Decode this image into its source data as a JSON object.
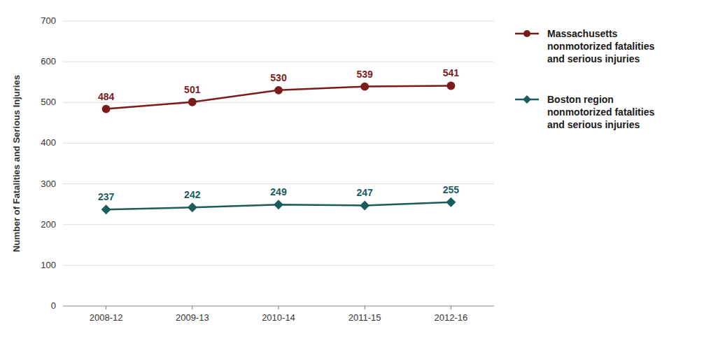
{
  "chart_data": {
    "type": "line",
    "categories": [
      "2008-12",
      "2009-13",
      "2010-14",
      "2011-15",
      "2012-16"
    ],
    "series": [
      {
        "name": "Massachusetts\nnonmotorized fatalities\nand serious injuries",
        "color": "#7B1C1C",
        "marker": "circle",
        "values": [
          484,
          501,
          530,
          539,
          541
        ]
      },
      {
        "name": "Boston region\nnonmotorized fatalities\nand serious injuries",
        "color": "#1B5C5C",
        "marker": "diamond",
        "values": [
          237,
          242,
          249,
          247,
          255
        ]
      }
    ],
    "y_label": "Number of Fatalities and Serious Injuries",
    "ylim": [
      0,
      700
    ],
    "yticks": [
      0,
      100,
      200,
      300,
      400,
      500,
      600,
      700
    ],
    "grid": true,
    "legend": "right",
    "data_labels": true
  }
}
